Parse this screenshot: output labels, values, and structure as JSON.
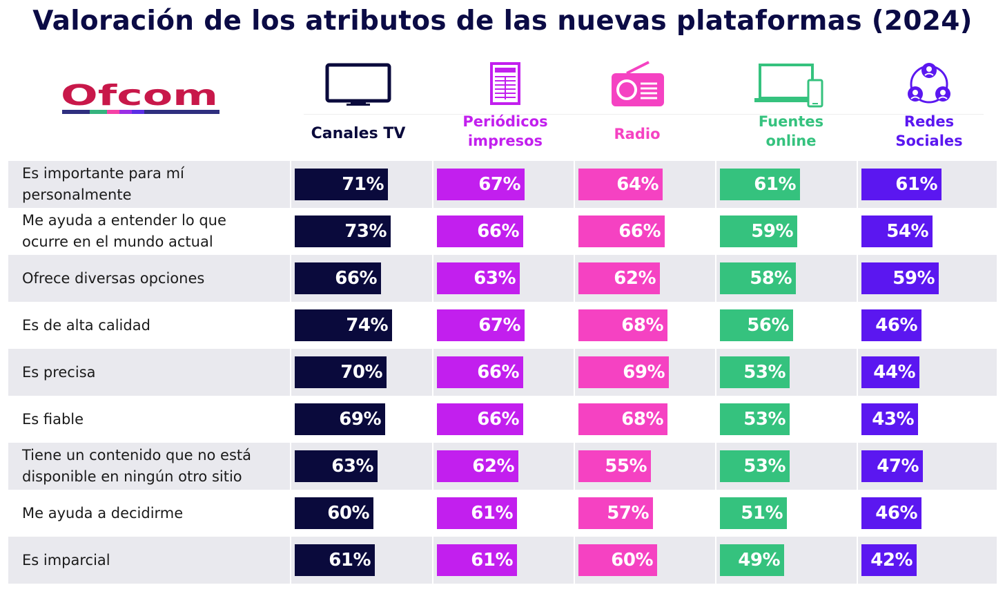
{
  "title": "Valoración de los atributos de las nuevas plataformas (2024)",
  "logo": {
    "text": "Ofcom",
    "color": "#c8184a",
    "stripe_colors": [
      "#2f2f7f",
      "#35b37e",
      "#f542a6",
      "#9a2ee5",
      "#5a2ee5",
      "#2f2f7f"
    ]
  },
  "chart_data": {
    "type": "bar",
    "title": "Valoración de los atributos de las nuevas plataformas (2024)",
    "categories": [
      "Es importante para mí personalmente",
      "Me ayuda a entender lo que ocurre en el mundo actual",
      "Ofrece diversas opciones",
      "Es de alta calidad",
      "Es precisa",
      "Es fiable",
      "Tiene un contenido que no está disponible en ningún otro sitio",
      "Me ayuda a decidirme",
      "Es imparcial"
    ],
    "category_lines": [
      [
        "Es importante para mí",
        "personalmente"
      ],
      [
        "Me ayuda a entender lo que",
        "ocurre en el mundo actual"
      ],
      [
        "Ofrece diversas opciones"
      ],
      [
        "Es de alta calidad"
      ],
      [
        "Es precisa"
      ],
      [
        "Es fiable"
      ],
      [
        "Tiene un contenido que no está",
        "disponible en ningún otro sitio"
      ],
      [
        "Me ayuda a decidirme"
      ],
      [
        "Es imparcial"
      ]
    ],
    "series": [
      {
        "name": "Canales TV",
        "name_lines": [
          "Canales TV"
        ],
        "color": "#0a0a3c",
        "label_color": "#0a0a3c",
        "icon": "tv-icon",
        "values": [
          71,
          73,
          66,
          74,
          70,
          69,
          63,
          60,
          61
        ]
      },
      {
        "name": "Periódicos impresos",
        "name_lines": [
          "Periódicos",
          "impresos"
        ],
        "color": "#c21fee",
        "label_color": "#c21fee",
        "icon": "newspaper-icon",
        "values": [
          67,
          66,
          63,
          67,
          66,
          66,
          62,
          61,
          61
        ]
      },
      {
        "name": "Radio",
        "name_lines": [
          "Radio"
        ],
        "color": "#f542c2",
        "label_color": "#f542c2",
        "icon": "radio-icon",
        "values": [
          64,
          66,
          62,
          68,
          69,
          68,
          55,
          57,
          60
        ]
      },
      {
        "name": "Fuentes online",
        "name_lines": [
          "Fuentes",
          "online"
        ],
        "color": "#35c27e",
        "label_color": "#35c27e",
        "icon": "laptop-phone-icon",
        "values": [
          61,
          59,
          58,
          56,
          53,
          53,
          53,
          51,
          49
        ]
      },
      {
        "name": "Redes Sociales",
        "name_lines": [
          "Redes",
          "Sociales"
        ],
        "color": "#5b17f0",
        "label_color": "#5b17f0",
        "icon": "social-people-icon",
        "values": [
          61,
          54,
          59,
          46,
          44,
          43,
          47,
          46,
          42
        ]
      }
    ],
    "value_suffix": "%",
    "ylim": [
      0,
      100
    ],
    "legend": "none"
  }
}
